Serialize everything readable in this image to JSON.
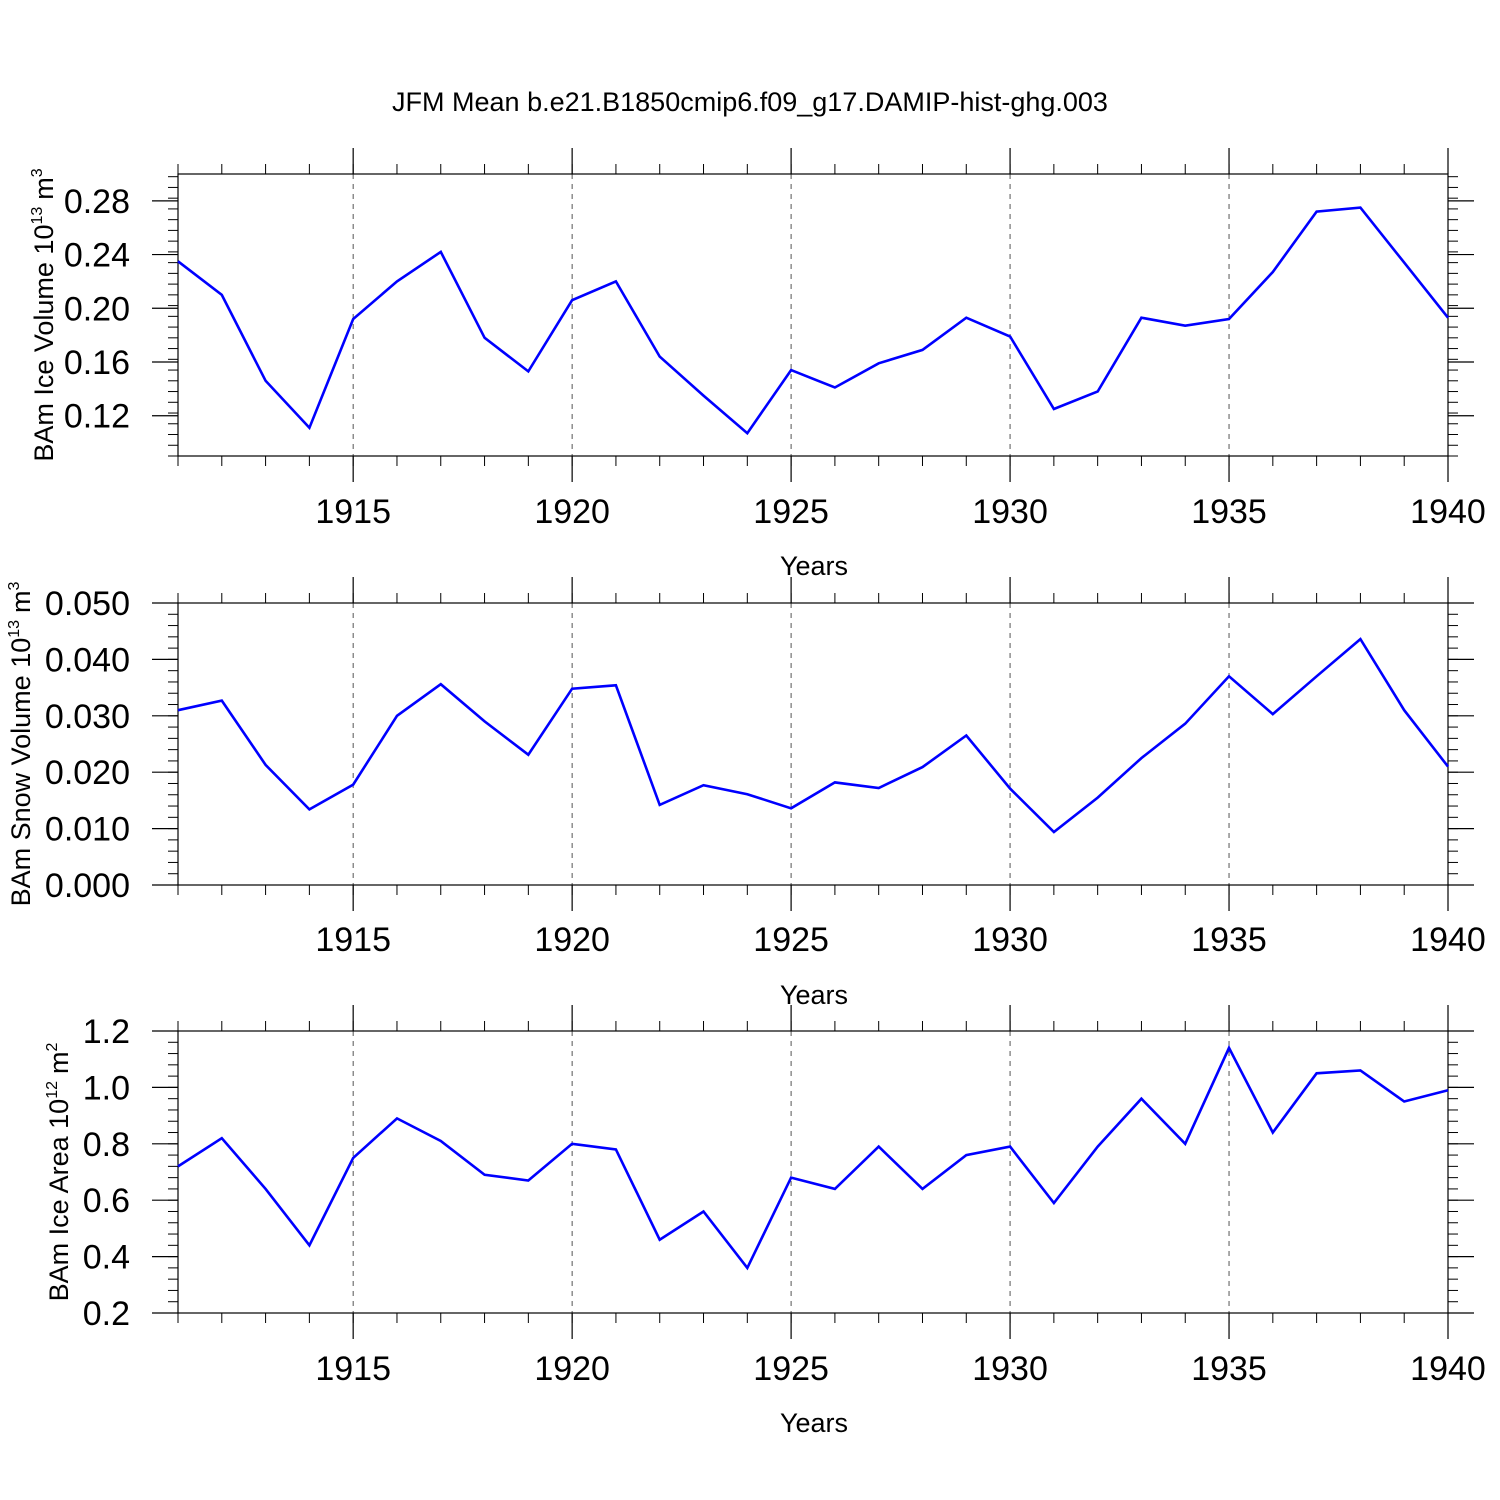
{
  "figure": {
    "title": "JFM Mean b.e21.B1850cmip6.f09_g17.DAMIP-hist-ghg.003",
    "line_color": "#0000ff"
  },
  "chart_data": [
    {
      "type": "line",
      "x": [
        1911,
        1912,
        1913,
        1914,
        1915,
        1916,
        1917,
        1918,
        1919,
        1920,
        1921,
        1922,
        1923,
        1924,
        1925,
        1926,
        1927,
        1928,
        1929,
        1930,
        1931,
        1932,
        1933,
        1934,
        1935,
        1936,
        1937,
        1938,
        1939,
        1940
      ],
      "series": [
        {
          "values": [
            0.235,
            0.21,
            0.146,
            0.111,
            0.192,
            0.22,
            0.242,
            0.178,
            0.153,
            0.206,
            0.22,
            0.164,
            0.135,
            0.107,
            0.154,
            0.141,
            0.159,
            0.169,
            0.193,
            0.179,
            0.125,
            0.138,
            0.193,
            0.187,
            0.192,
            0.227,
            0.272,
            0.275,
            0.234,
            0.193
          ]
        }
      ],
      "ylabel": "BAm Ice Volume 10",
      "ylabel_sup": "13",
      "ylabel_unit": "m",
      "ylabel_unit_sup": "3",
      "xlabel": "Years",
      "xlim": [
        1911,
        1940
      ],
      "ylim": [
        0.09,
        0.3
      ],
      "yticks": [
        0.12,
        0.16,
        0.2,
        0.24,
        0.28
      ],
      "ytick_labels": [
        "0.12",
        "0.16",
        "0.20",
        "0.24",
        "0.28"
      ],
      "xticks": [
        1915,
        1920,
        1925,
        1930,
        1935,
        1940
      ],
      "xtick_labels": [
        "1915",
        "1920",
        "1925",
        "1930",
        "1935",
        "1940"
      ]
    },
    {
      "type": "line",
      "x": [
        1911,
        1912,
        1913,
        1914,
        1915,
        1916,
        1917,
        1918,
        1919,
        1920,
        1921,
        1922,
        1923,
        1924,
        1925,
        1926,
        1927,
        1928,
        1929,
        1930,
        1931,
        1932,
        1933,
        1934,
        1935,
        1936,
        1937,
        1938,
        1939,
        1940
      ],
      "series": [
        {
          "values": [
            0.031,
            0.0327,
            0.0213,
            0.0134,
            0.0178,
            0.03,
            0.0356,
            0.029,
            0.0231,
            0.0348,
            0.0354,
            0.0142,
            0.0177,
            0.0161,
            0.0136,
            0.0182,
            0.0172,
            0.0209,
            0.0265,
            0.0171,
            0.0094,
            0.0155,
            0.0225,
            0.0286,
            0.037,
            0.0303,
            0.037,
            0.0436,
            0.031,
            0.021
          ]
        }
      ],
      "ylabel": "BAm Snow Volume 10",
      "ylabel_sup": "13",
      "ylabel_unit": "m",
      "ylabel_unit_sup": "3",
      "xlabel": "Years",
      "xlim": [
        1911,
        1940
      ],
      "ylim": [
        0.0,
        0.05
      ],
      "yticks": [
        0.0,
        0.01,
        0.02,
        0.03,
        0.04,
        0.05
      ],
      "ytick_labels": [
        "0.000",
        "0.010",
        "0.020",
        "0.030",
        "0.040",
        "0.050"
      ],
      "xticks": [
        1915,
        1920,
        1925,
        1930,
        1935,
        1940
      ],
      "xtick_labels": [
        "1915",
        "1920",
        "1925",
        "1930",
        "1935",
        "1940"
      ]
    },
    {
      "type": "line",
      "x": [
        1911,
        1912,
        1913,
        1914,
        1915,
        1916,
        1917,
        1918,
        1919,
        1920,
        1921,
        1922,
        1923,
        1924,
        1925,
        1926,
        1927,
        1928,
        1929,
        1930,
        1931,
        1932,
        1933,
        1934,
        1935,
        1936,
        1937,
        1938,
        1939,
        1940
      ],
      "series": [
        {
          "values": [
            0.72,
            0.82,
            0.64,
            0.44,
            0.75,
            0.89,
            0.81,
            0.69,
            0.67,
            0.8,
            0.78,
            0.46,
            0.56,
            0.36,
            0.68,
            0.64,
            0.79,
            0.64,
            0.76,
            0.79,
            0.59,
            0.79,
            0.96,
            0.8,
            1.14,
            0.84,
            1.05,
            1.06,
            0.95,
            0.99
          ]
        }
      ],
      "ylabel": "BAm Ice Area 10",
      "ylabel_sup": "12",
      "ylabel_unit": "m",
      "ylabel_unit_sup": "2",
      "xlabel": "Years",
      "xlim": [
        1911,
        1940
      ],
      "ylim": [
        0.2,
        1.2
      ],
      "yticks": [
        0.2,
        0.4,
        0.6,
        0.8,
        1.0,
        1.2
      ],
      "ytick_labels": [
        "0.2",
        "0.4",
        "0.6",
        "0.8",
        "1.0",
        "1.2"
      ],
      "xticks": [
        1915,
        1920,
        1925,
        1930,
        1935,
        1940
      ],
      "xtick_labels": [
        "1915",
        "1920",
        "1925",
        "1930",
        "1935",
        "1940"
      ]
    }
  ]
}
